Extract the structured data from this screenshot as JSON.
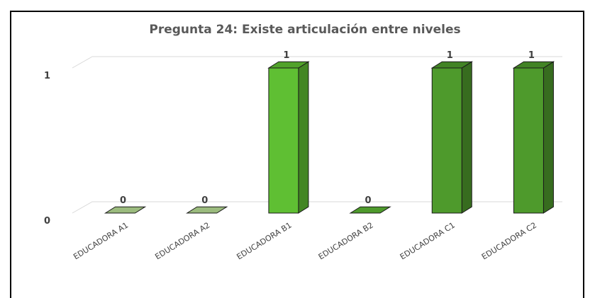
{
  "chart_data": {
    "type": "bar",
    "title": "Pregunta 24: Existe articulación  entre niveles",
    "categories": [
      "EDUCADORA A1",
      "EDUCADORA A2",
      "EDUCADORA B1",
      "EDUCADORA B2",
      "EDUCADORA C1",
      "EDUCADORA C2"
    ],
    "values": [
      0,
      0,
      1,
      0,
      1,
      1
    ],
    "data_labels": [
      "0",
      "0",
      "1",
      "0",
      "1",
      "1"
    ],
    "y_ticks": [
      "0",
      "1"
    ],
    "ylim": [
      0,
      1
    ],
    "xlabel": "",
    "ylabel": "",
    "grid": true,
    "legend": "none",
    "three_d": true,
    "colors": {
      "EDUCADORA A1": "#9bbb7e",
      "EDUCADORA A2": "#9bbb7e",
      "EDUCADORA B1": "#5fbf33",
      "EDUCADORA B2": "#4e9a2c",
      "EDUCADORA C1": "#4e9a2c",
      "EDUCADORA C2": "#4e9a2c"
    }
  }
}
